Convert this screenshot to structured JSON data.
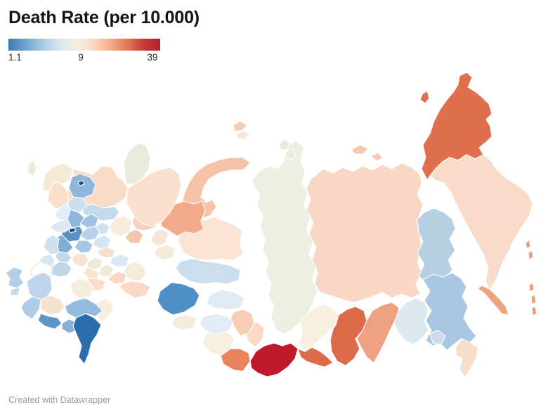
{
  "header": {
    "title": "Death Rate (per 10.000)"
  },
  "legend": {
    "min_label": "1.1",
    "mid_label": "9",
    "max_label": "39",
    "gradient_stops": [
      "#3d7ab5",
      "#6ea3cd",
      "#a7c9e1",
      "#d8e5ec",
      "#f4efe2",
      "#f9dcc4",
      "#f3ae8b",
      "#e27a57",
      "#c53c39",
      "#b21f2c"
    ]
  },
  "footer": {
    "credit": "Created with Datawrapper"
  },
  "chart_data": {
    "type": "choropleth",
    "title": "Death Rate (per 10.000)",
    "geography": "Russia — federal subjects",
    "legend_position": "top-left",
    "scale": {
      "min": 1.1,
      "mid": 9,
      "max": 39,
      "unit": "per 10.000",
      "palette": "diverging blue → cream → red"
    },
    "no_data_color": "#ffffff",
    "border_color": "#ffffff",
    "regions": [
      {
        "id": "yakutia",
        "fill": "#f8d7c5"
      },
      {
        "id": "krasnoyarsk",
        "fill": "#ecefe1"
      },
      {
        "id": "chukotka",
        "fill": "#e0704d"
      },
      {
        "id": "chukotka_island",
        "fill": "#e0704d"
      },
      {
        "id": "kamchatka",
        "fill": "#f8dcc9"
      },
      {
        "id": "magadan",
        "fill": "#b5cfe3"
      },
      {
        "id": "khabarovsk",
        "fill": "#a9c7e0"
      },
      {
        "id": "amur",
        "fill": "#dce7ee"
      },
      {
        "id": "jewish",
        "fill": "#ccdce9"
      },
      {
        "id": "primorye",
        "fill": "#f6dfc8"
      },
      {
        "id": "sakhalin",
        "fill": "#f0a381"
      },
      {
        "id": "kuril_1",
        "fill": "#ef9c7a"
      },
      {
        "id": "kuril_2",
        "fill": "#ef9c7a"
      },
      {
        "id": "kuril_3",
        "fill": "#ef9c7a"
      },
      {
        "id": "kuril_4",
        "fill": "#ef9c7a"
      },
      {
        "id": "kuril_5",
        "fill": "#ef9c7a"
      },
      {
        "id": "zabaykalsky",
        "fill": "#efa080"
      },
      {
        "id": "buryatia",
        "fill": "#dd6b4a"
      },
      {
        "id": "buryatia_west",
        "fill": "#dd6b4a"
      },
      {
        "id": "irkutsk",
        "fill": "#f7f0de"
      },
      {
        "id": "tuva",
        "fill": "#be1a2b"
      },
      {
        "id": "khakassia",
        "fill": "#fbd9c6"
      },
      {
        "id": "altai_republic",
        "fill": "#e8835c"
      },
      {
        "id": "altai_krai",
        "fill": "#f6efdd"
      },
      {
        "id": "kemerovo",
        "fill": "#f6cdb5"
      },
      {
        "id": "novosibirsk",
        "fill": "#e3ecf4"
      },
      {
        "id": "tomsk",
        "fill": "#e0eaf2"
      },
      {
        "id": "omsk",
        "fill": "#f5eddc"
      },
      {
        "id": "yamal",
        "fill": "#f6c3a8"
      },
      {
        "id": "khanty",
        "fill": "#fbe3d3"
      },
      {
        "id": "tyumen_mid",
        "fill": "#cbdeef"
      },
      {
        "id": "tyumen_south",
        "fill": "#4e8fc7"
      },
      {
        "id": "sverdlovsk",
        "fill": "#f2aa8b"
      },
      {
        "id": "perm",
        "fill": "#f8d0bb"
      },
      {
        "id": "udmurtia",
        "fill": "#f5c5ad"
      },
      {
        "id": "chelyabinsk",
        "fill": "#f7e5d5"
      },
      {
        "id": "kurgan",
        "fill": "#f4ead9"
      },
      {
        "id": "bashkortostan",
        "fill": "#f4ecd9"
      },
      {
        "id": "orenburg",
        "fill": "#f9d9c5"
      },
      {
        "id": "komi",
        "fill": "#fbdfcd"
      },
      {
        "id": "nenets",
        "fill": "#e9ecdd"
      },
      {
        "id": "arkhangelsk",
        "fill": "#f9dcc8"
      },
      {
        "id": "murmansk",
        "fill": "#f5e9d8"
      },
      {
        "id": "karelia",
        "fill": "#fadfcb"
      },
      {
        "id": "vologda",
        "fill": "#c3d9ec"
      },
      {
        "id": "leningrad",
        "fill": "#8eb7da"
      },
      {
        "id": "stpetersburg",
        "fill": "#1d4b8c"
      },
      {
        "id": "novgorod",
        "fill": "#cddfee"
      },
      {
        "id": "pskov",
        "fill": "#e2ecf5"
      },
      {
        "id": "kaliningrad",
        "fill": "#f2e9d7"
      },
      {
        "id": "tver",
        "fill": "#8db7db"
      },
      {
        "id": "yaroslavl",
        "fill": "#9fc2e1"
      },
      {
        "id": "kostroma",
        "fill": "#cfe0ee"
      },
      {
        "id": "kirov",
        "fill": "#f6ecdc"
      },
      {
        "id": "moscow_oblast",
        "fill": "#5a92c6"
      },
      {
        "id": "moscow_city",
        "fill": "#19477f"
      },
      {
        "id": "vladimir",
        "fill": "#b9d2e9"
      },
      {
        "id": "smolensk",
        "fill": "#dbe7f2"
      },
      {
        "id": "kaluga_tula",
        "fill": "#7fadd4"
      },
      {
        "id": "ryazan",
        "fill": "#a7c7e3"
      },
      {
        "id": "bryansk",
        "fill": "#cfe0ef"
      },
      {
        "id": "oryol",
        "fill": "#c2d8eb"
      },
      {
        "id": "kursk",
        "fill": "#d8e6f2"
      },
      {
        "id": "voronezh",
        "fill": "#bed5ea"
      },
      {
        "id": "tambov",
        "fill": "#f6e3d2"
      },
      {
        "id": "penza",
        "fill": "#f0e8dc"
      },
      {
        "id": "nizhny",
        "fill": "#d4e4f1"
      },
      {
        "id": "mari_el",
        "fill": "#f7dfcc"
      },
      {
        "id": "tatarstan",
        "fill": "#dce9f3"
      },
      {
        "id": "mordovia",
        "fill": "#fae4d4"
      },
      {
        "id": "ulyanovsk",
        "fill": "#f3e9da"
      },
      {
        "id": "samara",
        "fill": "#f8d8c4"
      },
      {
        "id": "saratov",
        "fill": "#f9dcc9"
      },
      {
        "id": "volgograd",
        "fill": "#f4eedd"
      },
      {
        "id": "rostov",
        "fill": "#bdd5ea"
      },
      {
        "id": "donetsk_nodata",
        "fill": "#ffffff",
        "stroke": "#e9e4d9"
      },
      {
        "id": "krasnodar",
        "fill": "#aecce5"
      },
      {
        "id": "stavropol",
        "fill": "#f2e4cf"
      },
      {
        "id": "kbr",
        "fill": "#5e96c8"
      },
      {
        "id": "chechnya",
        "fill": "#87b2d6"
      },
      {
        "id": "dagestan",
        "fill": "#2e6cb0"
      },
      {
        "id": "kalmykia",
        "fill": "#94bbdc"
      },
      {
        "id": "astrakhan",
        "fill": "#f6eedd"
      },
      {
        "id": "crimea",
        "fill": "#b3cfe6"
      },
      {
        "id": "crimea_south",
        "fill": "#c7daec"
      },
      {
        "id": "severnaya_1",
        "fill": "#e7ebdb"
      },
      {
        "id": "severnaya_2",
        "fill": "#e7ebdb"
      },
      {
        "id": "novaya_1",
        "fill": "#f6cdb4"
      },
      {
        "id": "novaya_2",
        "fill": "#f2ead8"
      },
      {
        "id": "novosib_isl_1",
        "fill": "#f6c9b2"
      },
      {
        "id": "novosib_isl_2",
        "fill": "#f6c9b2"
      }
    ]
  }
}
